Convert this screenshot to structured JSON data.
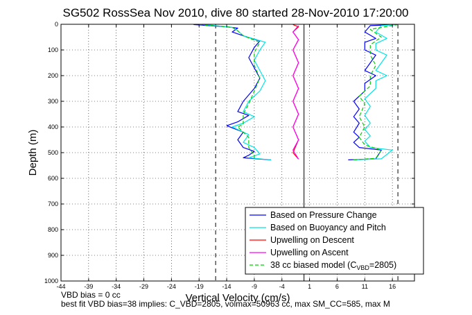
{
  "chart_data": {
    "type": "line",
    "title": "SG502 RossSea Nov 2010, dive 80 started 28-Nov-2010 17:20:00",
    "xlabel": "Vertical Velocity (cm/s)",
    "ylabel": "Depth (m)",
    "xlim": [
      -44,
      20
    ],
    "ylim": [
      1000,
      0
    ],
    "y_reversed": true,
    "grid": true,
    "x_ticks": [
      "-44",
      "-39",
      "-34",
      "-29",
      "-24",
      "-19",
      "-14",
      "-9",
      "-4",
      "1",
      "6",
      "11",
      "16"
    ],
    "y_ticks": [
      "0",
      "100",
      "200",
      "300",
      "400",
      "500",
      "600",
      "700",
      "800",
      "900",
      "1000"
    ],
    "legend_position": "bottom-right",
    "reference_lines": {
      "zero_x": 0,
      "dashed_x": [
        -16,
        17
      ],
      "dashed_style": "black dashed"
    },
    "series": [
      {
        "name": "Based on Pressure Change",
        "color": "#0000ff",
        "style": "solid",
        "descent": [
          [
            -20,
            1
          ],
          [
            -14,
            10
          ],
          [
            -12,
            15
          ],
          [
            -13,
            30
          ],
          [
            -11,
            45
          ],
          [
            -8,
            65
          ],
          [
            -9,
            90
          ],
          [
            -10,
            130
          ],
          [
            -9,
            170
          ],
          [
            -8,
            210
          ],
          [
            -9,
            250
          ],
          [
            -11,
            300
          ],
          [
            -12,
            340
          ],
          [
            -10,
            355
          ],
          [
            -12,
            380
          ],
          [
            -14,
            395
          ],
          [
            -11,
            420
          ],
          [
            -12,
            450
          ],
          [
            -11,
            480
          ],
          [
            -9,
            495
          ],
          [
            -10,
            510
          ],
          [
            -11,
            520
          ],
          [
            -8,
            525
          ],
          [
            -6,
            528
          ]
        ],
        "ascent": [
          [
            8,
            528
          ],
          [
            13,
            524
          ],
          [
            14,
            490
          ],
          [
            10,
            480
          ],
          [
            9,
            460
          ],
          [
            10,
            440
          ],
          [
            9,
            420
          ],
          [
            10,
            385
          ],
          [
            9,
            360
          ],
          [
            10,
            330
          ],
          [
            9,
            300
          ],
          [
            11,
            260
          ],
          [
            11,
            230
          ],
          [
            13,
            200
          ],
          [
            11,
            180
          ],
          [
            12,
            150
          ],
          [
            13,
            120
          ],
          [
            11,
            100
          ],
          [
            11,
            70
          ],
          [
            13,
            55
          ],
          [
            11,
            30
          ],
          [
            12,
            5
          ],
          [
            17,
            1
          ]
        ]
      },
      {
        "name": "Based on Buoyancy and Pitch",
        "color": "#00e5e5",
        "style": "solid",
        "descent": [
          [
            -18,
            1
          ],
          [
            -13,
            12
          ],
          [
            -12,
            25
          ],
          [
            -11,
            45
          ],
          [
            -7,
            70
          ],
          [
            -8,
            100
          ],
          [
            -9,
            140
          ],
          [
            -8,
            180
          ],
          [
            -7,
            220
          ],
          [
            -8,
            260
          ],
          [
            -10,
            300
          ],
          [
            -11,
            340
          ],
          [
            -9,
            360
          ],
          [
            -11,
            385
          ],
          [
            -13,
            400
          ],
          [
            -10,
            430
          ],
          [
            -11,
            460
          ],
          [
            -9,
            480
          ],
          [
            -8,
            505
          ],
          [
            -10,
            520
          ],
          [
            -6,
            528
          ]
        ],
        "ascent": [
          [
            9,
            528
          ],
          [
            14,
            524
          ],
          [
            16,
            490
          ],
          [
            12,
            480
          ],
          [
            11,
            455
          ],
          [
            12,
            435
          ],
          [
            11,
            410
          ],
          [
            12,
            385
          ],
          [
            11,
            355
          ],
          [
            12,
            320
          ],
          [
            11,
            290
          ],
          [
            13,
            250
          ],
          [
            13,
            220
          ],
          [
            15,
            200
          ],
          [
            13,
            180
          ],
          [
            14,
            150
          ],
          [
            15,
            120
          ],
          [
            13,
            100
          ],
          [
            13,
            75
          ],
          [
            15,
            55
          ],
          [
            13,
            30
          ],
          [
            14,
            5
          ],
          [
            17,
            1
          ]
        ]
      },
      {
        "name": "Upwelling on Descent",
        "color": "#ff0000",
        "style": "solid",
        "points": [
          [
            -2,
            1
          ],
          [
            -1,
            10
          ],
          [
            -2,
            30
          ],
          [
            -1,
            60
          ],
          [
            -2,
            100
          ],
          [
            -1,
            150
          ],
          [
            -2,
            200
          ],
          [
            -1,
            250
          ],
          [
            -2,
            300
          ],
          [
            -1,
            350
          ],
          [
            -2,
            400
          ],
          [
            -1,
            450
          ],
          [
            -2,
            500
          ],
          [
            -1,
            525
          ]
        ]
      },
      {
        "name": "Upwelling on Ascent",
        "color": "#ff00ff",
        "style": "solid",
        "points": [
          [
            -1,
            525
          ],
          [
            -2,
            490
          ],
          [
            -1,
            450
          ],
          [
            -2,
            400
          ],
          [
            -1,
            350
          ],
          [
            -2,
            300
          ],
          [
            -1,
            250
          ],
          [
            -2,
            200
          ],
          [
            -1,
            150
          ],
          [
            -2,
            100
          ],
          [
            -1,
            60
          ],
          [
            -2,
            30
          ],
          [
            -1,
            5
          ]
        ]
      },
      {
        "name": "38 cc biased model (C_VBD=2805)",
        "legend_text_main": "38 cc biased model (C",
        "legend_text_sub": "VBD",
        "legend_text_end": "=2805)",
        "color": "#00cc00",
        "style": "dashed",
        "descent": [
          [
            -19,
            1
          ],
          [
            -13,
            12
          ],
          [
            -12,
            25
          ],
          [
            -11,
            45
          ],
          [
            -8,
            70
          ],
          [
            -9,
            110
          ],
          [
            -9,
            160
          ],
          [
            -8,
            210
          ],
          [
            -9,
            260
          ],
          [
            -10,
            310
          ],
          [
            -11,
            350
          ],
          [
            -11,
            390
          ],
          [
            -12,
            400
          ],
          [
            -10,
            440
          ],
          [
            -10,
            480
          ],
          [
            -9,
            510
          ],
          [
            -9,
            522
          ]
        ],
        "ascent": [
          [
            9,
            528
          ],
          [
            13,
            522
          ],
          [
            14,
            490
          ],
          [
            11,
            470
          ],
          [
            10,
            440
          ],
          [
            11,
            400
          ],
          [
            10,
            360
          ],
          [
            11,
            310
          ],
          [
            10,
            280
          ],
          [
            12,
            240
          ],
          [
            12,
            200
          ],
          [
            13,
            160
          ],
          [
            12,
            120
          ],
          [
            12,
            80
          ],
          [
            14,
            50
          ],
          [
            12,
            20
          ],
          [
            17,
            1
          ]
        ]
      }
    ]
  },
  "footer": {
    "line1": "VBD bias = 0 cc",
    "line2": "best fit VBD bias=38 implies: C_VBD=2805, volmax=50963 cc, max SM_CC=585, max M"
  },
  "colors": {
    "background": "#ffffff",
    "axes": "#000000",
    "grid": "#000000"
  }
}
